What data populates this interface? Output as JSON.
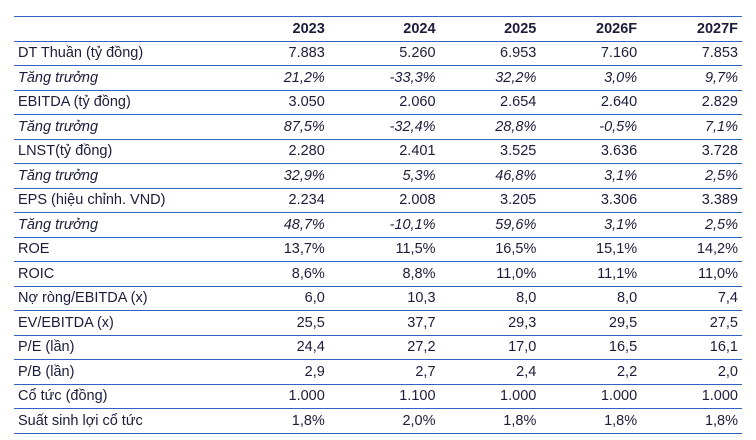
{
  "table": {
    "columns": [
      "2023",
      "2024",
      "2025",
      "2026F",
      "2027F"
    ],
    "rows": [
      {
        "label": "DT Thuần (tỷ đồng)",
        "values": [
          "7.883",
          "5.260",
          "6.953",
          "7.160",
          "7.853"
        ]
      },
      {
        "label": "Tăng trưởng",
        "italic": true,
        "values": [
          "21,2%",
          "-33,3%",
          "32,2%",
          "3,0%",
          "9,7%"
        ]
      },
      {
        "label": "EBITDA (tỷ đồng)",
        "values": [
          "3.050",
          "2.060",
          "2.654",
          "2.640",
          "2.829"
        ]
      },
      {
        "label": "Tăng trưởng",
        "italic": true,
        "values": [
          "87,5%",
          "-32,4%",
          "28,8%",
          "-0,5%",
          "7,1%"
        ]
      },
      {
        "label": "LNST(tỷ đồng)",
        "values": [
          "2.280",
          "2.401",
          "3.525",
          "3.636",
          "3.728"
        ]
      },
      {
        "label": "Tăng trưởng",
        "italic": true,
        "values": [
          "32,9%",
          "5,3%",
          "46,8%",
          "3,1%",
          "2,5%"
        ]
      },
      {
        "label": "EPS (hiệu chỉnh. VND)",
        "values": [
          "2.234",
          "2.008",
          "3.205",
          "3.306",
          "3.389"
        ]
      },
      {
        "label": "Tăng trưởng",
        "italic": true,
        "values": [
          "48,7%",
          "-10,1%",
          "59,6%",
          "3,1%",
          "2,5%"
        ]
      },
      {
        "label": "ROE",
        "values": [
          "13,7%",
          "11,5%",
          "16,5%",
          "15,1%",
          "14,2%"
        ]
      },
      {
        "label": "ROIC",
        "values": [
          "8,6%",
          "8,8%",
          "11,0%",
          "11,1%",
          "11,0%"
        ]
      },
      {
        "label": "Nợ ròng/EBITDA (x)",
        "values": [
          "6,0",
          "10,3",
          "8,0",
          "8,0",
          "7,4"
        ]
      },
      {
        "label": "EV/EBITDA (x)",
        "values": [
          "25,5",
          "37,7",
          "29,3",
          "29,5",
          "27,5"
        ]
      },
      {
        "label": "P/E (lần)",
        "values": [
          "24,4",
          "27,2",
          "17,0",
          "16,5",
          "16,1"
        ]
      },
      {
        "label": "P/B (lần)",
        "values": [
          "2,9",
          "2,7",
          "2,4",
          "2,2",
          "2,0"
        ]
      },
      {
        "label": "Cổ tức (đồng)",
        "values": [
          "1.000",
          "1.100",
          "1.000",
          "1.000",
          "1.000"
        ]
      },
      {
        "label": "Suất sinh lợi cổ tức",
        "values": [
          "1,8%",
          "2,0%",
          "1,8%",
          "1,8%",
          "1,8%"
        ]
      }
    ]
  }
}
